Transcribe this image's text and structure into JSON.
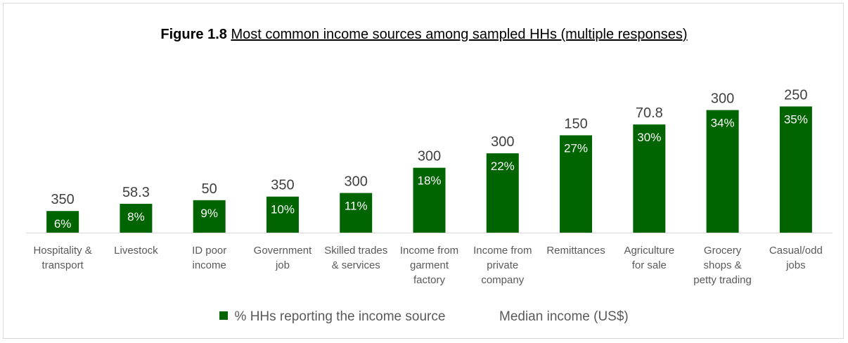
{
  "title": {
    "lead": "Figure 1.8",
    "rest": "Most common income sources among sampled HHs (multiple responses)"
  },
  "colors": {
    "bar": "#006400",
    "bar_text": "#ffffff",
    "label": "#404040",
    "axis": "#d9d9d9",
    "tick_text": "#595959"
  },
  "legend": {
    "bar_label": "% HHs reporting the income source",
    "line_label": "Median income (US$)"
  },
  "chart_data": {
    "type": "bar",
    "categories": [
      [
        "Hospitality &",
        "transport"
      ],
      [
        "Livestock"
      ],
      [
        "ID poor",
        "income"
      ],
      [
        "Government",
        "job"
      ],
      [
        "Skilled trades",
        "& services"
      ],
      [
        "Income from",
        "garment",
        "factory"
      ],
      [
        "Income from",
        "private",
        "company"
      ],
      [
        "Remittances"
      ],
      [
        "Agriculture",
        "for sale"
      ],
      [
        "Grocery",
        "shops &",
        "petty trading"
      ],
      [
        "Casual/odd",
        "jobs"
      ]
    ],
    "series": [
      {
        "name": "% HHs reporting the income source",
        "values": [
          6,
          8,
          9,
          10,
          11,
          18,
          22,
          27,
          30,
          34,
          35
        ],
        "labels": [
          "6%",
          "8%",
          "9%",
          "10%",
          "11%",
          "18%",
          "22%",
          "27%",
          "30%",
          "34%",
          "35%"
        ]
      },
      {
        "name": "Median income (US$)",
        "values": [
          350,
          58.3,
          50,
          350,
          300,
          300,
          300,
          150,
          70.8,
          300,
          250
        ],
        "labels": [
          "350",
          "58.3",
          "50",
          "350",
          "300",
          "300",
          "300",
          "150",
          "70.8",
          "300",
          "250"
        ]
      }
    ],
    "ylim": [
      0,
      40
    ],
    "grid": false,
    "legend_position": "bottom"
  }
}
